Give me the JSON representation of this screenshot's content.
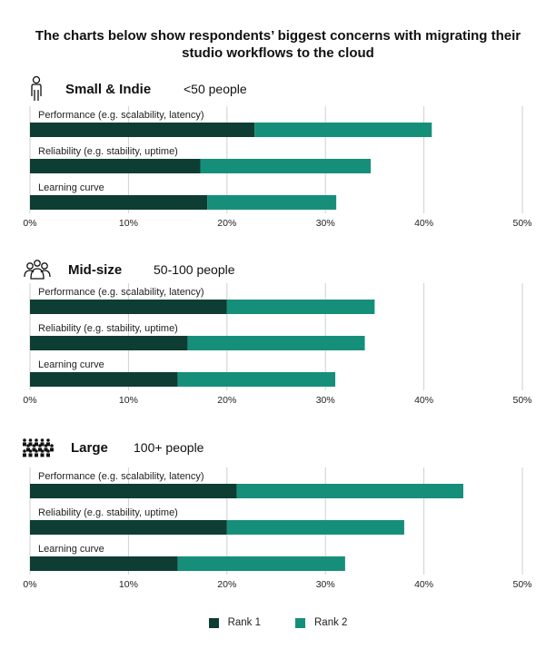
{
  "colors": {
    "rank1": "#0e3d33",
    "rank2": "#168f7a",
    "grid": "#cfcfcf",
    "text": "#111111"
  },
  "chart_title_lines": [
    "The charts below show respondents’ biggest concerns with migrating their",
    "studio workflows to the cloud"
  ],
  "legend": [
    {
      "name": "Rank 1",
      "color": "#0e3d33"
    },
    {
      "name": "Rank 2",
      "color": "#168f7a"
    }
  ],
  "chart_data": [
    {
      "type": "bar",
      "orientation": "horizontal",
      "stacked": true,
      "group_title": "Small & Indie",
      "group_subtitle": "<50 people",
      "icon": "single-person-icon",
      "categories": [
        "Performance (e.g. scalability, latency)",
        "Reliability (e.g. stability, uptime)",
        "Learning curve"
      ],
      "series": [
        {
          "name": "Rank 1",
          "values": [
            22.8,
            17.3,
            18.0
          ]
        },
        {
          "name": "Rank 2",
          "values": [
            18.0,
            17.3,
            13.1
          ]
        }
      ],
      "xlim": [
        0,
        50
      ],
      "xticks": [
        "0%",
        "10%",
        "20%",
        "30%",
        "40%",
        "50%"
      ],
      "grid": "vertical"
    },
    {
      "type": "bar",
      "orientation": "horizontal",
      "stacked": true,
      "group_title": "Mid-size",
      "group_subtitle": "50-100 people",
      "icon": "group-people-icon",
      "categories": [
        "Performance (e.g. scalability, latency)",
        "Reliability (e.g. stability, uptime)",
        "Learning curve"
      ],
      "series": [
        {
          "name": "Rank 1",
          "values": [
            20.0,
            16.0,
            15.0
          ]
        },
        {
          "name": "Rank 2",
          "values": [
            15.0,
            18.0,
            16.0
          ]
        }
      ],
      "xlim": [
        0,
        50
      ],
      "xticks": [
        "0%",
        "10%",
        "20%",
        "30%",
        "40%",
        "50%"
      ],
      "grid": "vertical"
    },
    {
      "type": "bar",
      "orientation": "horizontal",
      "stacked": true,
      "group_title": "Large",
      "group_subtitle": "100+ people",
      "icon": "crowd-icon",
      "categories": [
        "Performance (e.g. scalability, latency)",
        "Reliability (e.g. stability, uptime)",
        "Learning curve"
      ],
      "series": [
        {
          "name": "Rank 1",
          "values": [
            21.0,
            20.0,
            15.0
          ]
        },
        {
          "name": "Rank 2",
          "values": [
            23.0,
            18.0,
            17.0
          ]
        }
      ],
      "xlim": [
        0,
        50
      ],
      "xticks": [
        "0%",
        "10%",
        "20%",
        "30%",
        "40%",
        "50%"
      ],
      "grid": "vertical"
    }
  ]
}
